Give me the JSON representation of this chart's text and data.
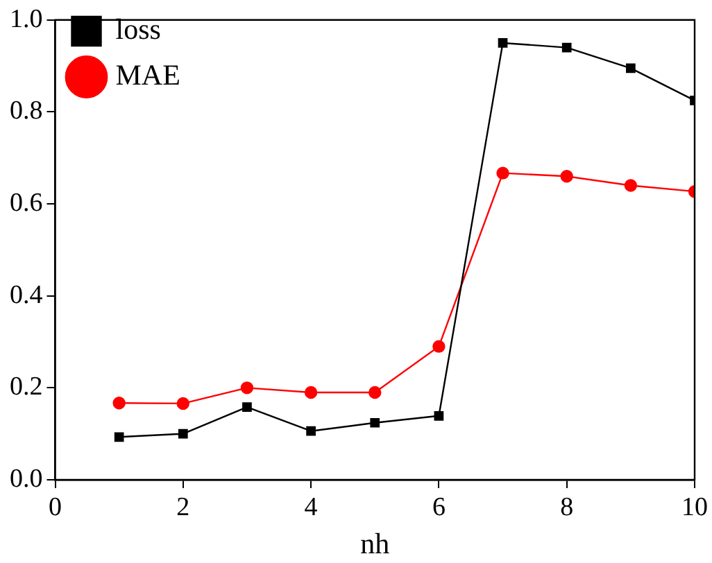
{
  "chart_data": {
    "type": "line",
    "xlabel": "nh",
    "x": [
      1,
      2,
      3,
      4,
      5,
      6,
      7,
      8,
      9,
      10
    ],
    "series": [
      {
        "name": "loss",
        "color": "#000000",
        "marker": "square",
        "values": [
          0.093,
          0.1,
          0.158,
          0.106,
          0.124,
          0.139,
          0.95,
          0.94,
          0.895,
          0.825
        ]
      },
      {
        "name": "MAE",
        "color": "#ff0000",
        "marker": "circle",
        "values": [
          0.167,
          0.166,
          0.2,
          0.19,
          0.19,
          0.29,
          0.667,
          0.66,
          0.64,
          0.627
        ]
      }
    ],
    "xlim": [
      0,
      10
    ],
    "xticks": [
      0,
      2,
      4,
      6,
      8,
      10
    ],
    "ylim": [
      0,
      1
    ],
    "yticks": [
      {
        "value": 0,
        "label": "0.0"
      },
      {
        "value": 0.2,
        "label": "0.2"
      },
      {
        "value": 0.4,
        "label": "0.4"
      },
      {
        "value": 0.6,
        "label": "0.6"
      },
      {
        "value": 0.8,
        "label": "0.8"
      },
      {
        "value": 1,
        "label": "1.0"
      }
    ],
    "grid": false,
    "legend": "top left",
    "line_style": "solid"
  }
}
